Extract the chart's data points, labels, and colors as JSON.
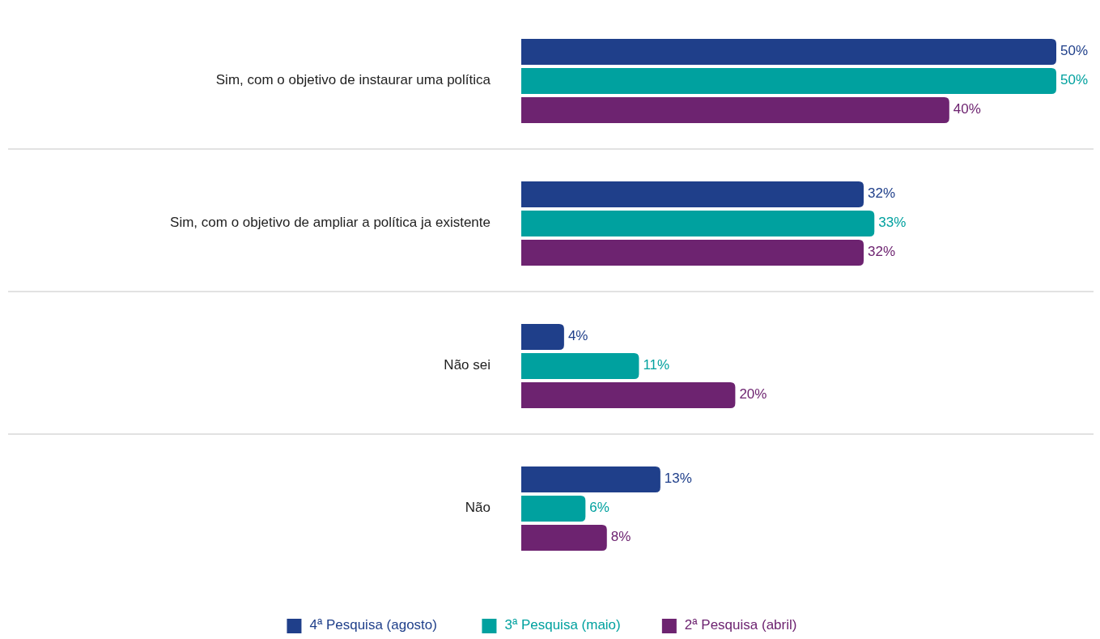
{
  "chart_data": {
    "type": "bar",
    "orientation": "horizontal",
    "legend": "bottom",
    "categories": [
      "Sim, com o objetivo de instaurar uma política",
      "Sim, com o objetivo de ampliar a política ja existente",
      "Não sei",
      "Não"
    ],
    "series": [
      {
        "name": "4ª Pesquisa (agosto)",
        "color": "#1f3f8a",
        "values": [
          50,
          32,
          4,
          13
        ],
        "value_labels": [
          "50%",
          "32%",
          "4%",
          "13%"
        ]
      },
      {
        "name": "3ª Pesquisa (maio)",
        "color": "#00a19f",
        "values": [
          50,
          33,
          11,
          6
        ],
        "value_labels": [
          "50%",
          "33%",
          "11%",
          "6%"
        ]
      },
      {
        "name": "2ª Pesquisa (abril)",
        "color": "#6d2370",
        "values": [
          40,
          32,
          20,
          8
        ],
        "value_labels": [
          "40%",
          "32%",
          "20%",
          "8%"
        ]
      }
    ]
  }
}
